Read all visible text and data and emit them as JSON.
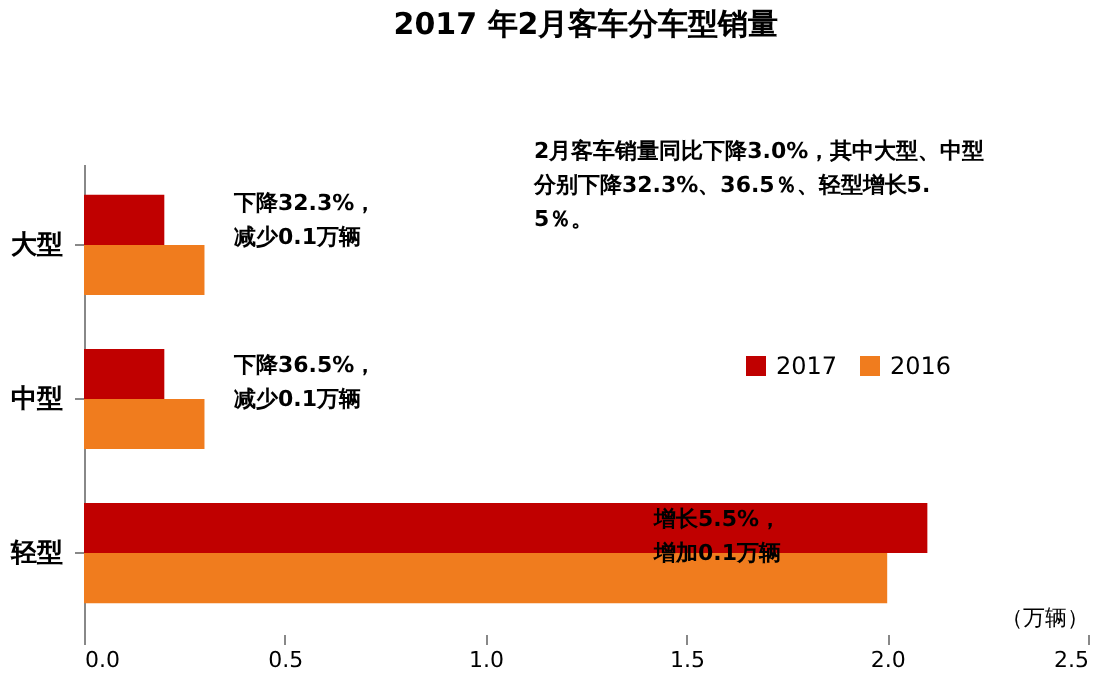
{
  "chart_data": {
    "type": "bar",
    "orientation": "horizontal",
    "title": "2017 年2月客车分车型销量",
    "categories": [
      "大型",
      "中型",
      "轻型"
    ],
    "series": [
      {
        "name": "2017",
        "color": "#c00000",
        "values": [
          0.2,
          0.2,
          2.1
        ]
      },
      {
        "name": "2016",
        "color": "#f07c1e",
        "values": [
          0.3,
          0.3,
          2.0
        ]
      }
    ],
    "xlim": [
      0,
      2.5
    ],
    "xticks": [
      {
        "value": 0,
        "label": "0.0"
      },
      0.5,
      {
        "value": 1,
        "label": "1.0"
      },
      1.5,
      {
        "value": 2,
        "label": "2.0"
      },
      2.5
    ],
    "xlabel": "（万辆）",
    "grid": false,
    "legend": "right",
    "annotations": [
      "2月客车销量同比下降3.0%，其中大型、中型分别下降32.3%、36.5％、轻型增长5.5％。",
      "下降32.3%，减少0.1万辆",
      "下降36.5%，减少0.1万辆",
      "增长5.5%，增加0.1万辆"
    ]
  }
}
